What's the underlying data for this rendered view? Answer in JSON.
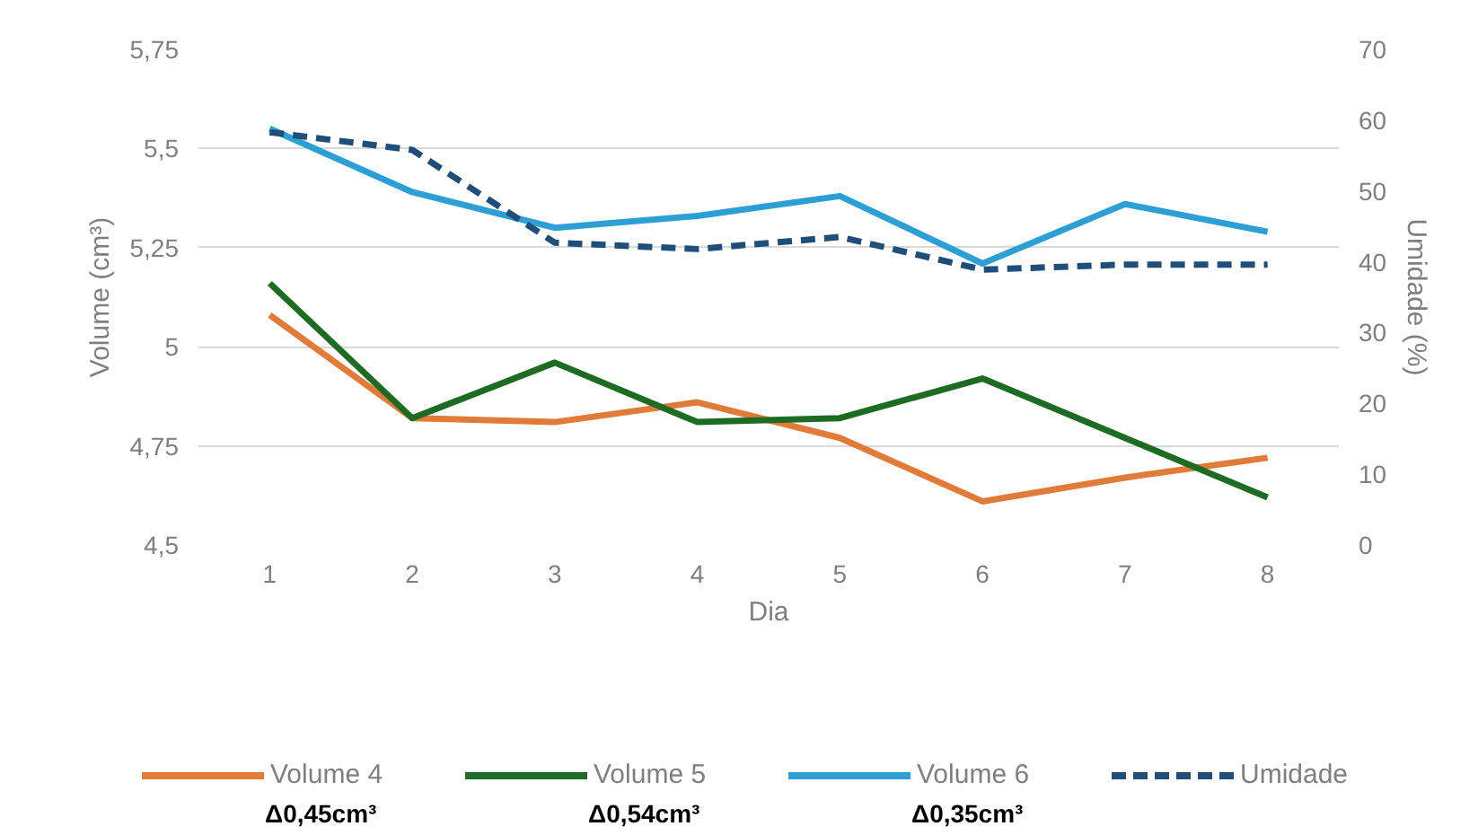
{
  "chart_data": {
    "type": "line",
    "xlabel": "Dia",
    "ylabel": "Volume (cm³)",
    "y2label": "Umidade (%)",
    "x": [
      1,
      2,
      3,
      4,
      5,
      6,
      7,
      8
    ],
    "xlim": [
      0.5,
      8.5
    ],
    "xticks": [
      1,
      2,
      3,
      4,
      5,
      6,
      7,
      8
    ],
    "ylim": [
      4.5,
      5.75
    ],
    "yticks": [
      {
        "value": 4.5,
        "label": "4,5"
      },
      {
        "value": 4.75,
        "label": "4,75"
      },
      5,
      {
        "value": 5.25,
        "label": "5,25"
      },
      {
        "value": 5.5,
        "label": "5,5"
      },
      {
        "value": 5.75,
        "label": "5,75"
      }
    ],
    "y2lim": [
      0,
      70
    ],
    "y2ticks": [
      0,
      10,
      20,
      30,
      40,
      50,
      60,
      70
    ],
    "grid": "y",
    "legend": "bottom",
    "line_style": "solid",
    "series": [
      {
        "name": "Volume 4",
        "color": "#e07b39",
        "values": [
          5.08,
          4.82,
          4.81,
          4.86,
          4.77,
          4.61,
          4.67,
          4.72
        ]
      },
      {
        "name": "Volume 5",
        "color": "#1e6b23",
        "values": [
          5.16,
          4.82,
          4.96,
          4.81,
          4.82,
          4.92,
          4.77,
          4.62
        ]
      },
      {
        "name": "Volume 6",
        "color": "#2e9fd4",
        "values": [
          5.55,
          5.39,
          5.3,
          5.33,
          5.38,
          5.21,
          5.36,
          5.29
        ]
      },
      {
        "name": "Umidade",
        "color": "#1f4e79",
        "axis": "y2",
        "line_style": "dashed",
        "values": [
          58.3,
          55.8,
          42.7,
          41.8,
          43.5,
          38.9,
          39.6,
          39.6
        ]
      }
    ],
    "annotations": [
      "Δ0,45cm³",
      "Δ0,54cm³",
      "Δ0,35cm³"
    ]
  }
}
